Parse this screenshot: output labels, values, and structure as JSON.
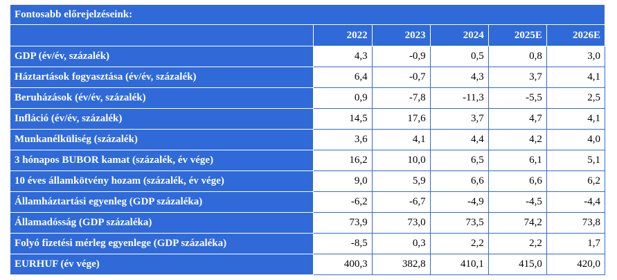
{
  "table": {
    "title": "Fontosabb előrejelzéseink:",
    "columns": [
      "2022",
      "2023",
      "2024",
      "2025E",
      "2026E"
    ],
    "rows": [
      {
        "label": "GDP (év/év, százalék)",
        "values": [
          "4,3",
          "-0,9",
          "0,5",
          "0,8",
          "3,0"
        ]
      },
      {
        "label": "Háztartások fogyasztása (év/év, százalék)",
        "values": [
          "6,4",
          "-0,7",
          "4,3",
          "3,7",
          "4,1"
        ]
      },
      {
        "label": "Beruházások (év/év, százalék)",
        "values": [
          "0,9",
          "-7,8",
          "-11,3",
          "-5,5",
          "2,5"
        ]
      },
      {
        "label": "Infláció (év/év, százalék)",
        "values": [
          "14,5",
          "17,6",
          "3,7",
          "4,7",
          "4,1"
        ]
      },
      {
        "label": "Munkanélküliség (százalék)",
        "values": [
          "3,6",
          "4,1",
          "4,4",
          "4,2",
          "4,0"
        ]
      },
      {
        "label": "3 hónapos BUBOR kamat (százalék, év vége)",
        "values": [
          "16,2",
          "10,0",
          "6,5",
          "6,1",
          "5,1"
        ]
      },
      {
        "label": "10 éves államkötvény hozam (százalék, év vége)",
        "values": [
          "9,0",
          "5,9",
          "6,6",
          "6,6",
          "6,2"
        ]
      },
      {
        "label": "Államháztartási egyenleg (GDP százaléka)",
        "values": [
          "-6,2",
          "-6,7",
          "-4,9",
          "-4,5",
          "-4,4"
        ]
      },
      {
        "label": "Államadósság (GDP százaléka)",
        "values": [
          "73,9",
          "73,0",
          "73,5",
          "74,2",
          "73,8"
        ]
      },
      {
        "label": "Folyó fizetési mérleg egyenlege (GDP százaléka)",
        "values": [
          "-8,5",
          "0,3",
          "2,2",
          "2,2",
          "1,7"
        ]
      },
      {
        "label": "EURHUF (év vége)",
        "values": [
          "400,3",
          "382,8",
          "410,1",
          "415,0",
          "420,0"
        ]
      }
    ]
  },
  "colors": {
    "header_bg": "#2f6ad8",
    "header_text": "#ffffff",
    "cell_bg": "#ffffff",
    "cell_text": "#000000"
  }
}
